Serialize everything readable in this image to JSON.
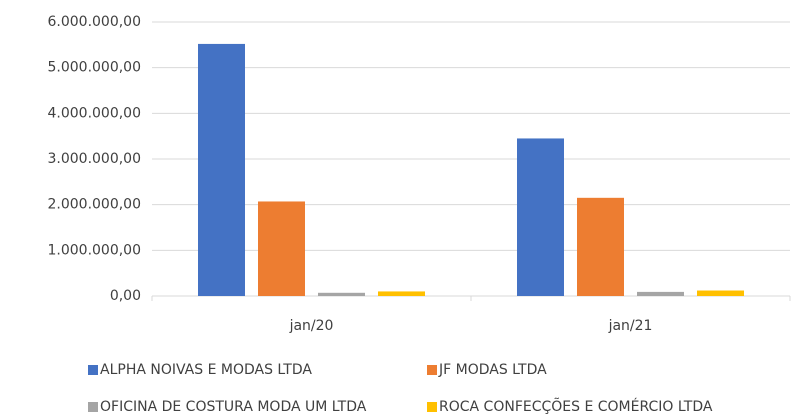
{
  "chart_data": {
    "type": "bar",
    "categories": [
      "jan/20",
      "jan/21"
    ],
    "series": [
      {
        "name": "ALPHA NOIVAS E MODAS LTDA",
        "color": "#4472c4",
        "values": [
          5520000,
          3450000
        ]
      },
      {
        "name": "JF MODAS LTDA",
        "color": "#ed7d31",
        "values": [
          2070000,
          2150000
        ]
      },
      {
        "name": "OFICINA DE COSTURA MODA UM LTDA",
        "color": "#a5a5a5",
        "values": [
          70000,
          90000
        ]
      },
      {
        "name": "ROCA CONFECÇÕES E COMÉRCIO LTDA",
        "color": "#ffc000",
        "values": [
          100000,
          120000
        ]
      }
    ],
    "ylim": [
      0,
      6000000
    ],
    "yticks": [
      {
        "value": 0,
        "label": "0,00"
      },
      {
        "value": 1000000,
        "label": "1.000.000,00"
      },
      {
        "value": 2000000,
        "label": "2.000.000,00"
      },
      {
        "value": 3000000,
        "label": "3.000.000,00"
      },
      {
        "value": 4000000,
        "label": "4.000.000,00"
      },
      {
        "value": 5000000,
        "label": "5.000.000,00"
      },
      {
        "value": 6000000,
        "label": "6.000.000,00"
      }
    ],
    "grid": true,
    "legend": "bottom"
  }
}
